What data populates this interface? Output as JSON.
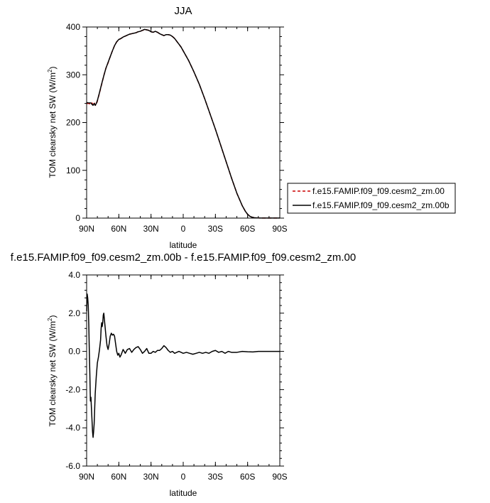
{
  "colors": {
    "series_a": "#cc0000",
    "series_b": "#000000",
    "axis": "#000000",
    "background": "#ffffff"
  },
  "chart_data": [
    {
      "type": "line",
      "title": "JJA",
      "xlabel": "latitude",
      "ylabel_main": "TOM clearsky net SW (W/m",
      "ylabel_sup": "2",
      "ylabel_close": ")",
      "x_reversed": true,
      "xlim": [
        90,
        -90
      ],
      "ylim": [
        0,
        400
      ],
      "x_ticks": [
        90,
        60,
        30,
        0,
        -30,
        -60,
        -90
      ],
      "x_tick_labels": [
        "90N",
        "60N",
        "30N",
        "0",
        "30S",
        "60S",
        "90S"
      ],
      "y_ticks": [
        0,
        100,
        200,
        300,
        400
      ],
      "y_tick_labels": [
        "0",
        "100",
        "200",
        "300",
        "400"
      ],
      "grid": false,
      "legend_placement": "right",
      "series": [
        {
          "name": "f.e15.FAMIP.f09_f09.cesm2_zm.00",
          "style": "dashed",
          "x": [
            90,
            88,
            86,
            85,
            84,
            83,
            82,
            81,
            80,
            78,
            76,
            74,
            72,
            70,
            68,
            66,
            64,
            62,
            60,
            58,
            56,
            54,
            52,
            50,
            48,
            46,
            44,
            42,
            40,
            38,
            36,
            34,
            32,
            30,
            28,
            26,
            24,
            22,
            20,
            18,
            16,
            14,
            12,
            10,
            8,
            6,
            4,
            2,
            0,
            -5,
            -10,
            -15,
            -20,
            -25,
            -30,
            -35,
            -40,
            -45,
            -50,
            -55,
            -58,
            -60,
            -62,
            -64,
            -66,
            -68,
            -70,
            -72,
            -75,
            -80,
            -85,
            -90
          ],
          "y": [
            240,
            240,
            238,
            241,
            237,
            242,
            236,
            238,
            245,
            262,
            280,
            298,
            314,
            325,
            338,
            350,
            361,
            369,
            373,
            376,
            379,
            381,
            383,
            385,
            386,
            387,
            388,
            390,
            391,
            393,
            394,
            394,
            393,
            390,
            389,
            391,
            389,
            386,
            384,
            382,
            384,
            384,
            383,
            380,
            376,
            370,
            364,
            358,
            350,
            330,
            306,
            280,
            250,
            218,
            186,
            152,
            118,
            84,
            52,
            26,
            14,
            8,
            4,
            2,
            1,
            0.5,
            0.3,
            0.2,
            0.1,
            0.1,
            0.1,
            0.1
          ]
        },
        {
          "name": "f.e15.FAMIP.f09_f09.cesm2_zm.00b",
          "style": "solid",
          "x": [
            90,
            88,
            86,
            85,
            84,
            83,
            82,
            81,
            80,
            78,
            76,
            74,
            72,
            70,
            68,
            66,
            64,
            62,
            60,
            58,
            56,
            54,
            52,
            50,
            48,
            46,
            44,
            42,
            40,
            38,
            36,
            34,
            32,
            30,
            28,
            26,
            24,
            22,
            20,
            18,
            16,
            14,
            12,
            10,
            8,
            6,
            4,
            2,
            0,
            -5,
            -10,
            -15,
            -20,
            -25,
            -30,
            -35,
            -40,
            -45,
            -50,
            -55,
            -58,
            -60,
            -62,
            -64,
            -66,
            -68,
            -70,
            -72,
            -75,
            -80,
            -85,
            -90
          ],
          "y": [
            242,
            241,
            241,
            238,
            236,
            240,
            236,
            240,
            246,
            263,
            281,
            298,
            314,
            326,
            338,
            350,
            361,
            369,
            374,
            376,
            379,
            381,
            383,
            385,
            386,
            387,
            388,
            390,
            391,
            393,
            395,
            394,
            393,
            390,
            389,
            391,
            389,
            386,
            384,
            382,
            384,
            384,
            383,
            380,
            376,
            370,
            364,
            358,
            350,
            330,
            306,
            280,
            250,
            218,
            186,
            152,
            118,
            84,
            52,
            26,
            14,
            8,
            4,
            2,
            1,
            0.5,
            0.3,
            0.2,
            0.1,
            0.1,
            0.1,
            0.1
          ]
        }
      ]
    },
    {
      "type": "line",
      "title": "f.e15.FAMIP.f09_f09.cesm2_zm.00b - f.e15.FAMIP.f09_f09.cesm2_zm.00",
      "xlabel": "latitude",
      "ylabel_main": "TOM clearsky net SW (W/m",
      "ylabel_sup": "2",
      "ylabel_close": ")",
      "x_reversed": true,
      "xlim": [
        90,
        -90
      ],
      "ylim": [
        -6,
        4
      ],
      "x_ticks": [
        90,
        60,
        30,
        0,
        -30,
        -60,
        -90
      ],
      "x_tick_labels": [
        "90N",
        "60N",
        "30N",
        "0",
        "30S",
        "60S",
        "90S"
      ],
      "y_ticks": [
        -6,
        -4,
        -2,
        0,
        2,
        4
      ],
      "y_tick_labels": [
        "-6.0",
        "-4.0",
        "-2.0",
        "0.0",
        "2.0",
        "4.0"
      ],
      "grid": false,
      "series": [
        {
          "style": "solid",
          "x": [
            90,
            89.5,
            89,
            88.5,
            88,
            87.5,
            87,
            86.5,
            86,
            85.5,
            85,
            84.5,
            84,
            83.5,
            83,
            82.5,
            82,
            81,
            80,
            79,
            78,
            77,
            76.5,
            76,
            75.5,
            75,
            74.5,
            74,
            73,
            72,
            71,
            70,
            69,
            68,
            67,
            66,
            65,
            64,
            63,
            62,
            61,
            60,
            59,
            58,
            56,
            54,
            52,
            50,
            48,
            46,
            44,
            42,
            40,
            38,
            36,
            34,
            32,
            30,
            28,
            26,
            24,
            22,
            20,
            18,
            16,
            14,
            12,
            10,
            8,
            6,
            4,
            2,
            0,
            -3,
            -6,
            -9,
            -12,
            -15,
            -18,
            -21,
            -24,
            -27,
            -30,
            -33,
            -36,
            -39,
            -42,
            -45,
            -50,
            -55,
            -60,
            -65,
            -70,
            -75,
            -80,
            -85,
            -90
          ],
          "y": [
            2.1,
            3.0,
            2.8,
            2.4,
            1.4,
            0.0,
            -1.2,
            -2.6,
            -2.4,
            -3.0,
            -3.6,
            -4.2,
            -4.5,
            -4.2,
            -3.8,
            -3.0,
            -2.2,
            -1.3,
            -0.6,
            -0.3,
            0.1,
            0.6,
            1.2,
            1.5,
            1.3,
            1.5,
            1.9,
            2.0,
            1.4,
            0.8,
            0.3,
            0.1,
            0.4,
            0.8,
            0.95,
            0.85,
            0.9,
            0.8,
            0.4,
            0.0,
            -0.2,
            -0.1,
            -0.3,
            -0.2,
            0.1,
            -0.1,
            0.1,
            0.15,
            -0.05,
            0.1,
            0.2,
            0.25,
            0.1,
            -0.1,
            0.0,
            0.15,
            -0.1,
            -0.1,
            0.0,
            -0.05,
            0.05,
            0.05,
            0.15,
            0.3,
            0.2,
            0.05,
            -0.05,
            0.0,
            -0.1,
            -0.05,
            0.0,
            -0.05,
            -0.1,
            -0.05,
            -0.1,
            -0.15,
            -0.1,
            -0.05,
            -0.1,
            -0.05,
            -0.1,
            0.0,
            0.05,
            -0.05,
            0.0,
            -0.1,
            0.0,
            -0.05,
            -0.05,
            0.0,
            -0.02,
            -0.03,
            0.0,
            0.0,
            0.0,
            0.0,
            0.0
          ]
        }
      ]
    }
  ]
}
